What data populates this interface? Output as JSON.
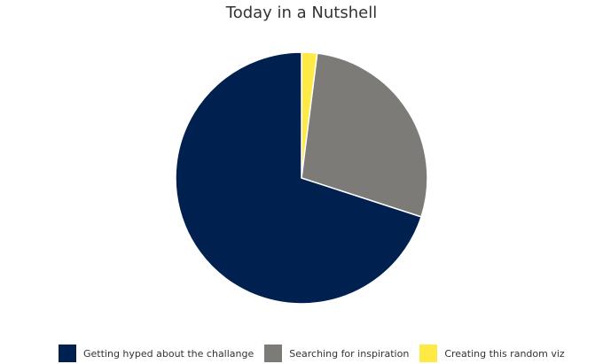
{
  "chart_data": {
    "type": "pie",
    "title": "Today in a Nutshell",
    "categories": [
      "Getting hyped about the challange",
      "Searching for inspiration",
      "Creating this random viz"
    ],
    "values": [
      70,
      28,
      2
    ],
    "colors": [
      "#00204f",
      "#7c7b78",
      "#ffe945"
    ],
    "legend_position": "bottom"
  }
}
